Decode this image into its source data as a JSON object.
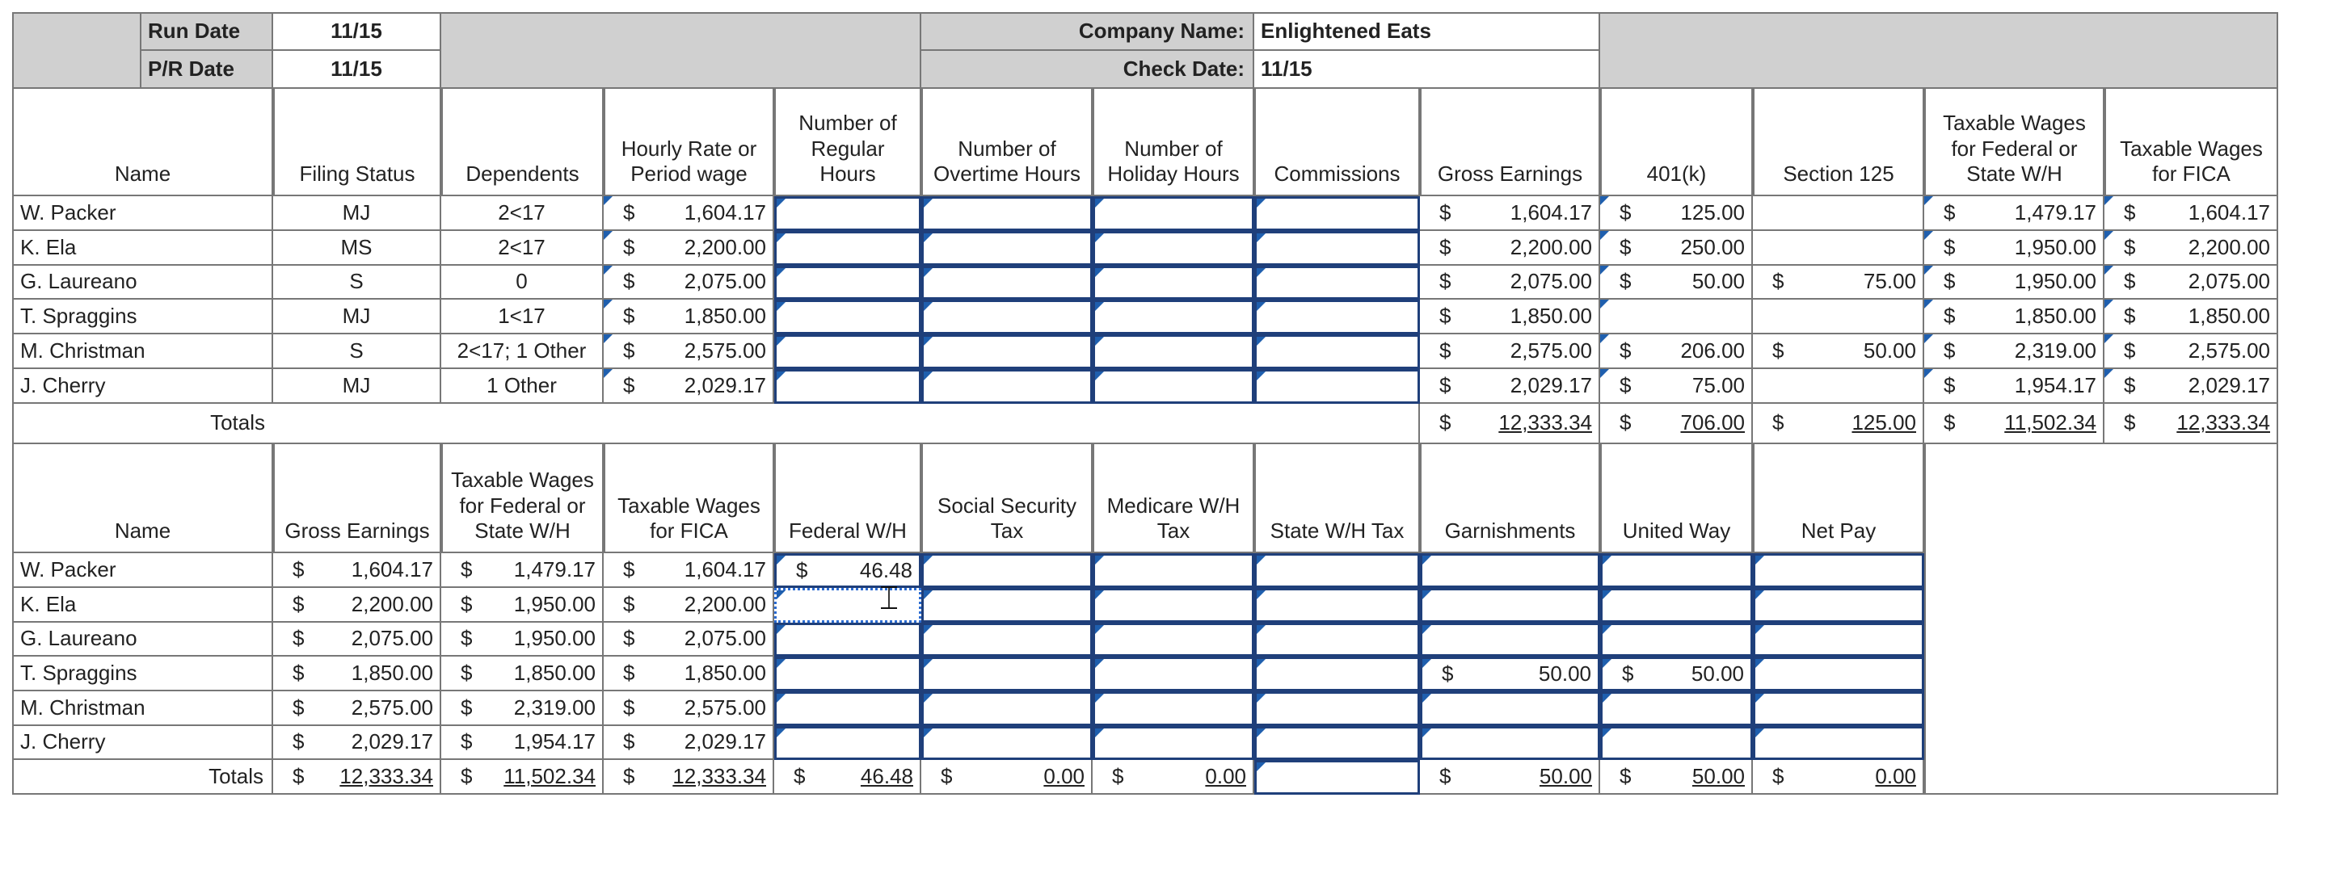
{
  "info": {
    "run_date_label": "Run Date",
    "run_date_value": "11/15",
    "pr_date_label": "P/R Date",
    "pr_date_value": "11/15",
    "company_label": "Company Name:",
    "company_value": "Enlightened Eats",
    "check_label": "Check Date:",
    "check_value": "11/15"
  },
  "top_table": {
    "headers": [
      "Name",
      "Filing Status",
      "Dependents",
      "Hourly Rate or Period wage",
      "Number of Regular Hours",
      "Number of Overtime Hours",
      "Number of Holiday Hours",
      "Commissions",
      "Gross Earnings",
      "401(k)",
      "Section 125",
      "Taxable Wages for Federal or State W/H",
      "Taxable Wages for FICA"
    ],
    "rows": [
      {
        "name": "W. Packer",
        "status": "MJ",
        "dependents": "2<17",
        "rate": "1,604.17",
        "gross": "1,604.17",
        "k401": "125.00",
        "s125": "",
        "fed": "1,479.17",
        "fica": "1,604.17"
      },
      {
        "name": "K. Ela",
        "status": "MS",
        "dependents": "2<17",
        "rate": "2,200.00",
        "gross": "2,200.00",
        "k401": "250.00",
        "s125": "",
        "fed": "1,950.00",
        "fica": "2,200.00"
      },
      {
        "name": "G. Laureano",
        "status": "S",
        "dependents": "0",
        "rate": "2,075.00",
        "gross": "2,075.00",
        "k401": "50.00",
        "s125": "75.00",
        "fed": "1,950.00",
        "fica": "2,075.00"
      },
      {
        "name": "T. Spraggins",
        "status": "MJ",
        "dependents": "1<17",
        "rate": "1,850.00",
        "gross": "1,850.00",
        "k401": "",
        "s125": "",
        "fed": "1,850.00",
        "fica": "1,850.00"
      },
      {
        "name": "M. Christman",
        "status": "S",
        "dependents": "2<17; 1 Other",
        "rate": "2,575.00",
        "gross": "2,575.00",
        "k401": "206.00",
        "s125": "50.00",
        "fed": "2,319.00",
        "fica": "2,575.00"
      },
      {
        "name": "J. Cherry",
        "status": "MJ",
        "dependents": "1 Other",
        "rate": "2,029.17",
        "gross": "2,029.17",
        "k401": "75.00",
        "s125": "",
        "fed": "1,954.17",
        "fica": "2,029.17"
      }
    ],
    "totals_label": "Totals",
    "totals": {
      "gross": "12,333.34",
      "k401": "706.00",
      "s125": "125.00",
      "fed": "11,502.34",
      "fica": "12,333.34"
    }
  },
  "bottom_table": {
    "headers": [
      "Name",
      "Gross Earnings",
      "Taxable Wages for Federal or State W/H",
      "Taxable Wages for FICA",
      "Federal W/H",
      "Social Security Tax",
      "Medicare W/H Tax",
      "State W/H Tax",
      "Garnishments",
      "United Way",
      "Net Pay"
    ],
    "rows": [
      {
        "name": "W. Packer",
        "gross": "1,604.17",
        "fed": "1,479.17",
        "fica": "1,604.17",
        "fedwh": "46.48",
        "garn": "",
        "uw": ""
      },
      {
        "name": "K. Ela",
        "gross": "2,200.00",
        "fed": "1,950.00",
        "fica": "2,200.00",
        "fedwh": "",
        "garn": "",
        "uw": ""
      },
      {
        "name": "G. Laureano",
        "gross": "2,075.00",
        "fed": "1,950.00",
        "fica": "2,075.00",
        "fedwh": "",
        "garn": "",
        "uw": ""
      },
      {
        "name": "T. Spraggins",
        "gross": "1,850.00",
        "fed": "1,850.00",
        "fica": "1,850.00",
        "fedwh": "",
        "garn": "50.00",
        "uw": "50.00"
      },
      {
        "name": "M. Christman",
        "gross": "2,575.00",
        "fed": "2,319.00",
        "fica": "2,575.00",
        "fedwh": "",
        "garn": "",
        "uw": ""
      },
      {
        "name": "J. Cherry",
        "gross": "2,029.17",
        "fed": "1,954.17",
        "fica": "2,029.17",
        "fedwh": "",
        "garn": "",
        "uw": ""
      }
    ],
    "totals_label": "Totals",
    "totals": {
      "gross": "12,333.34",
      "fed": "11,502.34",
      "fica": "12,333.34",
      "fedwh": "46.48",
      "ss": "0.00",
      "medicare": "0.00",
      "statewh": "",
      "garn": "50.00",
      "uw": "50.00",
      "net": "0.00"
    }
  },
  "currency_symbol": "$",
  "colors": {
    "header_fill": "#d0d0d0",
    "input_border": "#1f3f7a",
    "input_marker": "#1f5fae",
    "selection": "#2a6bd1"
  },
  "icons": {
    "cursor": "text-cursor-icon"
  }
}
